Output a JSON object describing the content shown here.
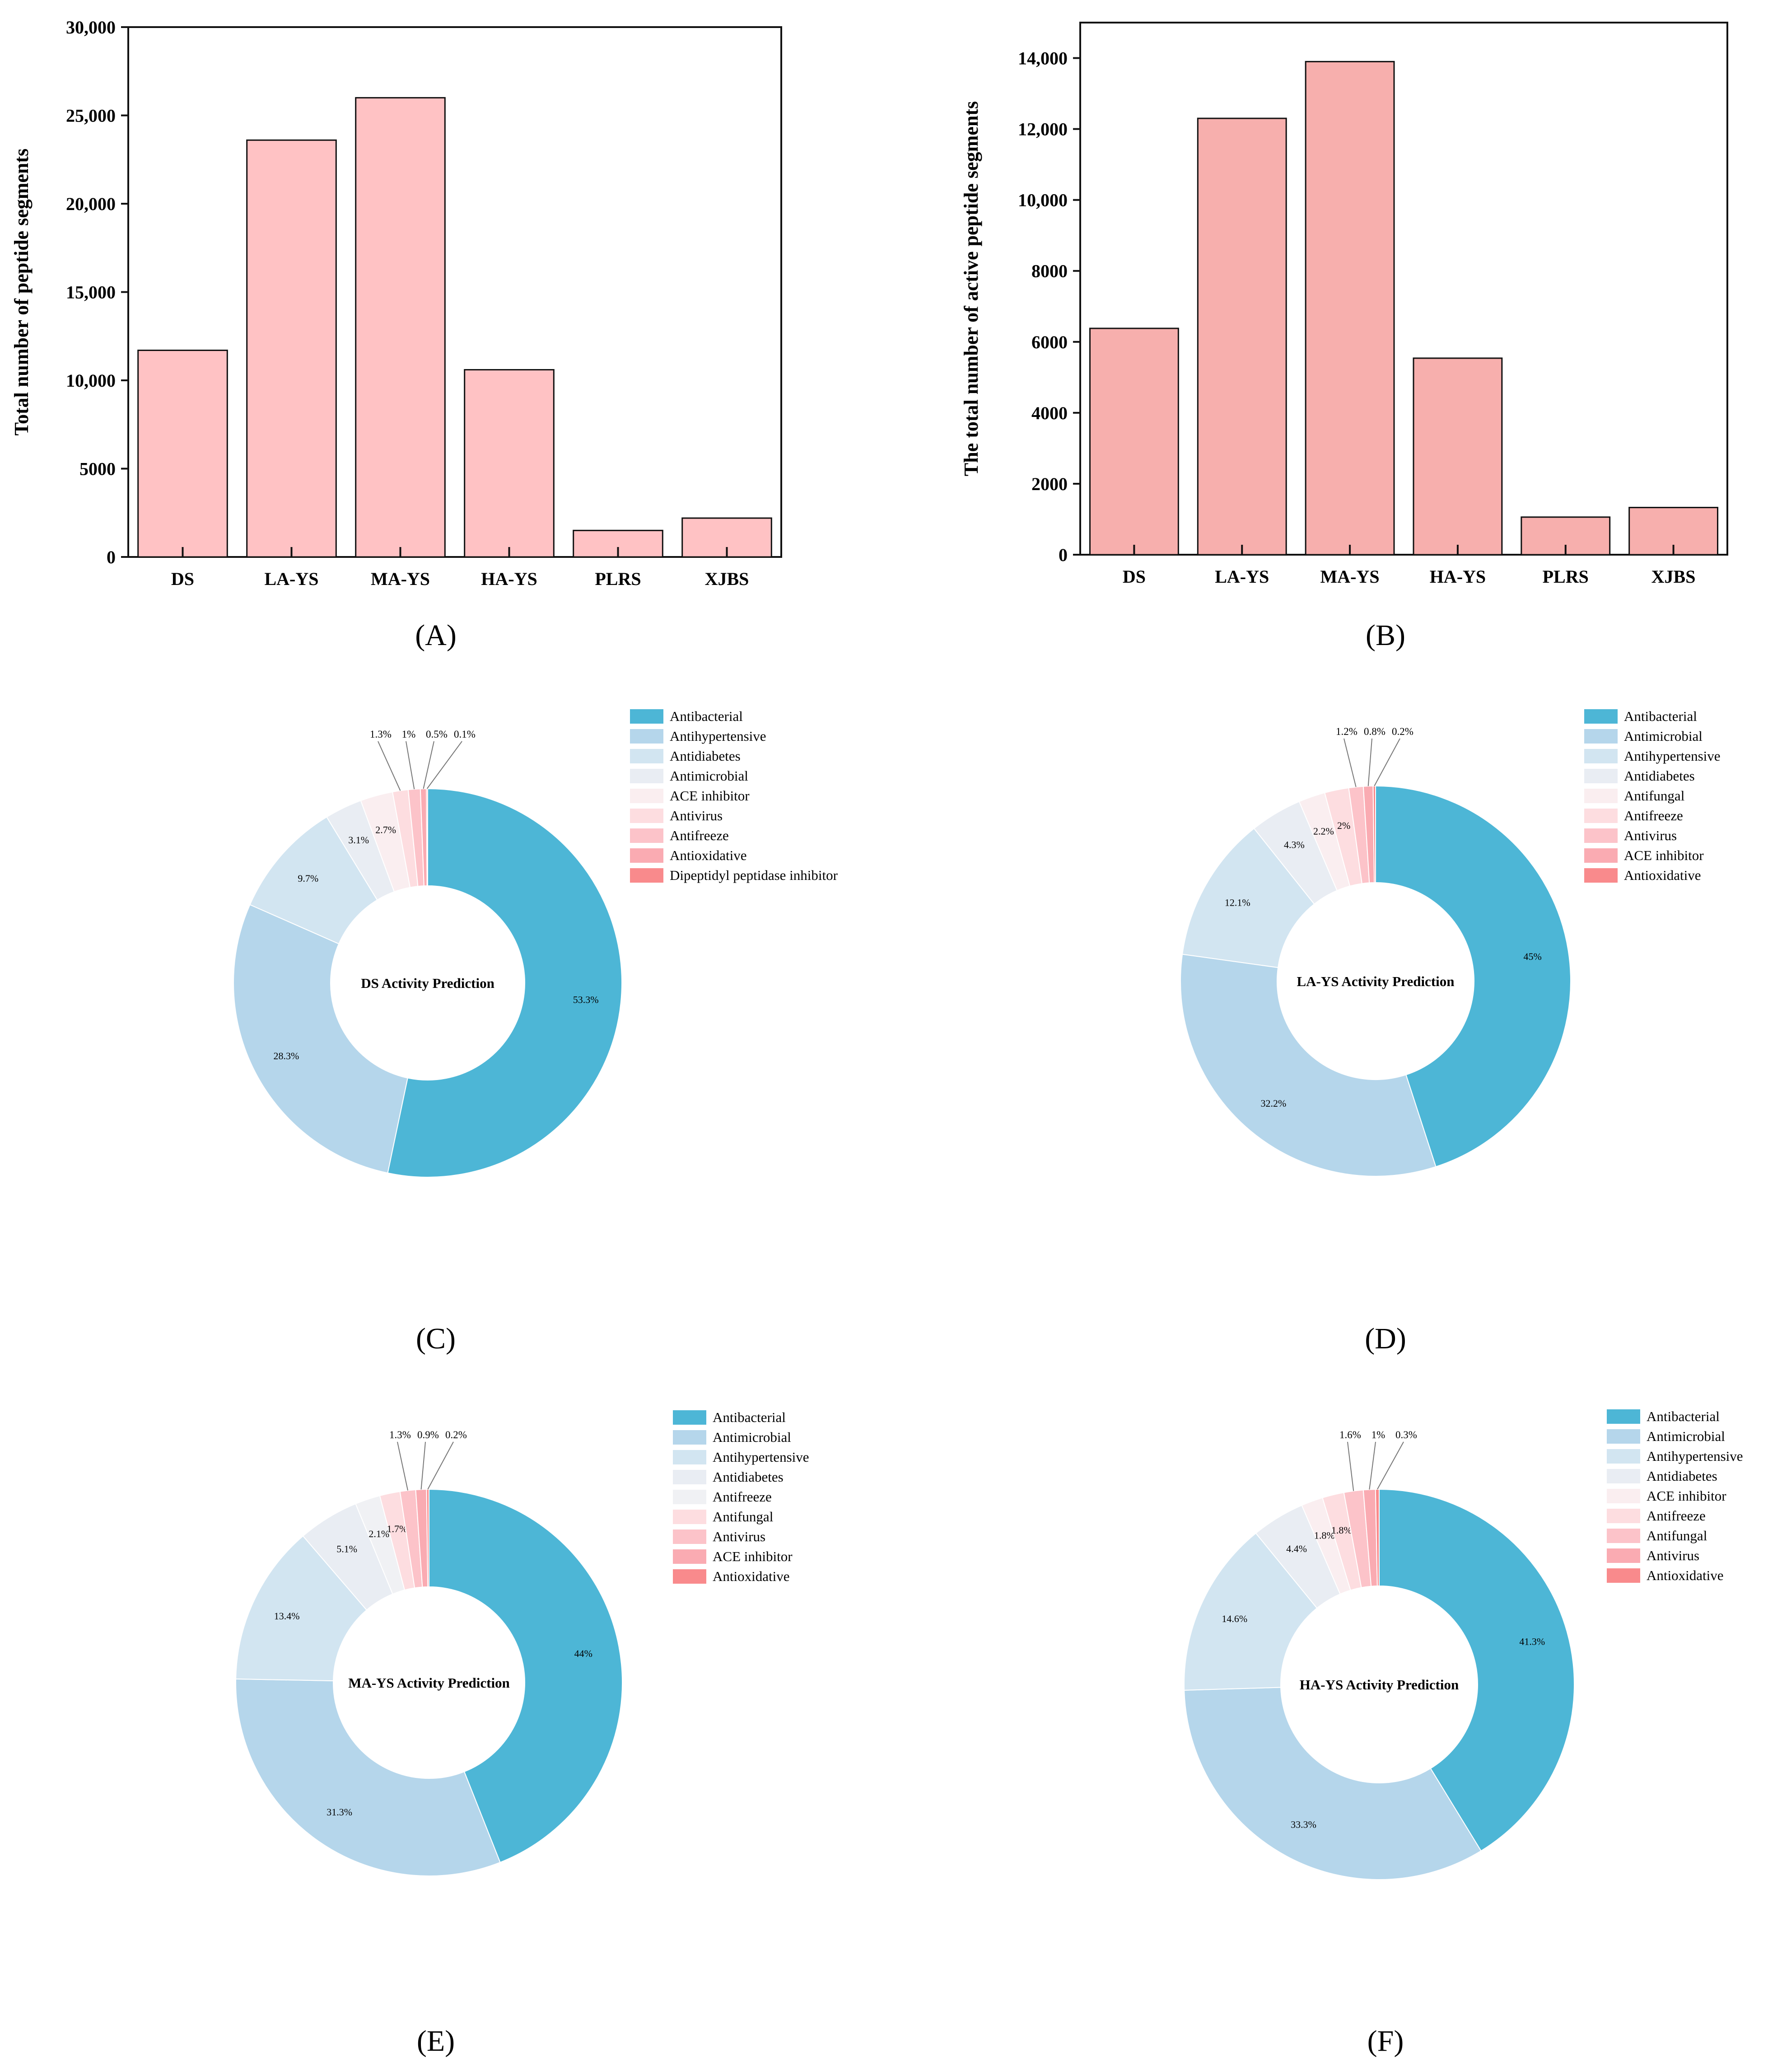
{
  "panels": {
    "A": {
      "label": "(A)"
    },
    "B": {
      "label": "(B)"
    },
    "C": {
      "label": "(C)"
    },
    "D": {
      "label": "(D)"
    },
    "E": {
      "label": "(E)"
    },
    "F": {
      "label": "(F)"
    }
  },
  "colors": {
    "bar_a": "#ffc2c4",
    "bar_b": "#f7afad",
    "categories": {
      "Antibacterial": "#4db6d6",
      "Antihypertensive_DS": "#b5d6eb",
      "Antimicrobial_LA": "#b5d6eb",
      "level3": "#d2e5f1",
      "level4": "#e9edf3",
      "level5": "#faeef0",
      "level6": "#fddde0",
      "level7": "#fcc3c9",
      "level8": "#faabb2",
      "level9": "#f98a8c"
    }
  },
  "chart_data": [
    {
      "id": "A",
      "type": "bar",
      "title": "",
      "xlabel": "",
      "ylabel": "Total number of peptide segments",
      "categories": [
        "DS",
        "LA-YS",
        "MA-YS",
        "HA-YS",
        "PLRS",
        "XJBS"
      ],
      "values": [
        11700,
        23600,
        26000,
        10600,
        1500,
        2200
      ],
      "ylim": [
        0,
        30000
      ],
      "yticks": [
        0,
        5000,
        10000,
        15000,
        20000,
        25000,
        30000
      ],
      "ytick_labels": [
        "0",
        "5000",
        "10,000",
        "15,000",
        "20,000",
        "25,000",
        "30,000"
      ]
    },
    {
      "id": "B",
      "type": "bar",
      "title": "",
      "xlabel": "",
      "ylabel": "The total number of active peptide segments",
      "categories": [
        "DS",
        "LA-YS",
        "MA-YS",
        "HA-YS",
        "PLRS",
        "XJBS"
      ],
      "values": [
        6380,
        12300,
        13900,
        5540,
        1060,
        1330
      ],
      "ylim": [
        0,
        15000
      ],
      "yticks": [
        0,
        2000,
        4000,
        6000,
        8000,
        10000,
        12000,
        14000
      ],
      "ytick_labels": [
        "0",
        "2000",
        "4000",
        "6000",
        "8000",
        "10,000",
        "12,000",
        "14,000"
      ]
    },
    {
      "id": "C",
      "type": "pie",
      "title": "DS Activity Prediction",
      "categories": [
        "Antibacterial",
        "Antihypertensive",
        "Antidiabetes",
        "Antimicrobial",
        "ACE inhibitor",
        "Antivirus",
        "Antifreeze",
        "Antioxidative",
        "Dipeptidyl peptidase inhibitor"
      ],
      "values": [
        53.3,
        28.3,
        9.7,
        3.1,
        2.7,
        1.3,
        1,
        0.5,
        0.1
      ],
      "labels": [
        "53.3%",
        "28.3%",
        "9.7%",
        "3.1%",
        "2.7%",
        "1.3%",
        "1%",
        "0.5%",
        "0.1%"
      ],
      "colors": [
        "#4db6d6",
        "#b5d6eb",
        "#d2e5f1",
        "#e9edf3",
        "#faeef0",
        "#fddde0",
        "#fcc3c9",
        "#faabb2",
        "#f98a8c"
      ],
      "callouts": [
        5,
        6,
        7,
        8
      ]
    },
    {
      "id": "D",
      "type": "pie",
      "title": "LA-YS Activity Prediction",
      "categories": [
        "Antibacterial",
        "Antimicrobial",
        "Antihypertensive",
        "Antidiabetes",
        "Antifungal",
        "Antifreeze",
        "Antivirus",
        "ACE inhibitor",
        "Antioxidative"
      ],
      "values": [
        45,
        32.2,
        12.1,
        4.3,
        2.2,
        2,
        1.2,
        0.8,
        0.2
      ],
      "labels": [
        "45%",
        "32.2%",
        "12.1%",
        "4.3%",
        "2.2%",
        "2%",
        "1.2%",
        "0.8%",
        "0.2%"
      ],
      "colors": [
        "#4db6d6",
        "#b5d6eb",
        "#d2e5f1",
        "#e9edf3",
        "#faeef0",
        "#fddde0",
        "#fcc3c9",
        "#faabb2",
        "#f98a8c"
      ],
      "callouts": [
        6,
        7,
        8
      ]
    },
    {
      "id": "E",
      "type": "pie",
      "title": "MA-YS Activity Prediction",
      "categories": [
        "Antibacterial",
        "Antimicrobial",
        "Antihypertensive",
        "Antidiabetes",
        "Antifreeze",
        "Antifungal",
        "Antivirus",
        "ACE inhibitor",
        "Antioxidative"
      ],
      "values": [
        44,
        31.3,
        13.4,
        5.1,
        2.1,
        1.7,
        1.3,
        0.9,
        0.2
      ],
      "labels": [
        "44%",
        "31.3%",
        "13.4%",
        "5.1%",
        "2.1%",
        "1.7%",
        "1.3%",
        "0.9%",
        "0.2%"
      ],
      "colors": [
        "#4db6d6",
        "#b5d6eb",
        "#d2e5f1",
        "#e9edf3",
        "#f0f1f4",
        "#fddde0",
        "#fcc3c9",
        "#faabb2",
        "#f98a8c"
      ],
      "callouts": [
        6,
        7,
        8
      ]
    },
    {
      "id": "F",
      "type": "pie",
      "title": "HA-YS Activity Prediction",
      "categories": [
        "Antibacterial",
        "Antimicrobial",
        "Antihypertensive",
        "Antidiabetes",
        "ACE inhibitor",
        "Antifreeze",
        "Antifungal",
        "Antivirus",
        "Antioxidative"
      ],
      "values": [
        41.3,
        33.3,
        14.6,
        4.4,
        1.8,
        1.8,
        1.6,
        1,
        0.3
      ],
      "labels": [
        "41.3%",
        "33.3%",
        "14.6%",
        "4.4%",
        "1.8%",
        "1.8%",
        "1.6%",
        "1%",
        "0.3%"
      ],
      "colors": [
        "#4db6d6",
        "#b5d6eb",
        "#d2e5f1",
        "#e9edf3",
        "#faeef0",
        "#fddde0",
        "#fcc3c9",
        "#faabb2",
        "#f98a8c"
      ],
      "callouts": [
        6,
        7,
        8
      ]
    }
  ]
}
